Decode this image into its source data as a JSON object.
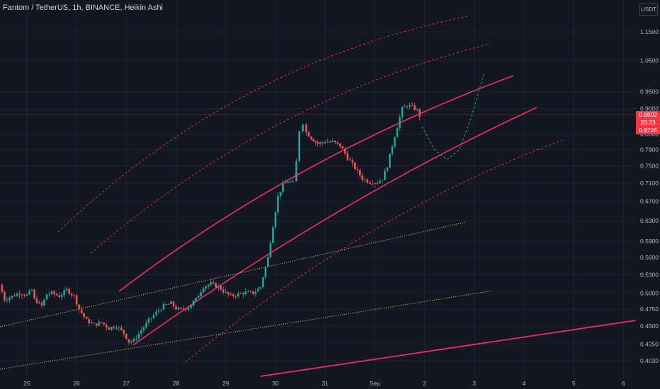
{
  "header": {
    "title": "Fantom / TetherUS, 1h, BINANCE, Heikin Ashi",
    "currency": "USDT"
  },
  "price_tag": {
    "last_price": "0.8802",
    "countdown": "20:23",
    "secondary_price": "0.8726",
    "color": "#f23645"
  },
  "colors": {
    "background": "#131722",
    "up": "#26a69a",
    "down": "#ef5350",
    "channel": "#f2286a",
    "dotted_lines": "#e3d06a",
    "projection": "#26a69a",
    "axis_text": "#b2b5be"
  },
  "chart_data": {
    "type": "candlestick",
    "style": "Heikin Ashi",
    "symbol": "Fantom / TetherUS",
    "exchange": "BINANCE",
    "interval": "1h",
    "x_tick_labels": [
      "25",
      "26",
      "27",
      "28",
      "29",
      "30",
      "31",
      "Sep",
      "2",
      "3",
      "4",
      "5",
      "6"
    ],
    "y_tick_labels": [
      "1.1500",
      "1.0500",
      "0.9500",
      "0.9000",
      "0.8300",
      "0.7900",
      "0.7500",
      "0.7100",
      "0.6700",
      "0.6300",
      "0.5900",
      "0.5600",
      "0.5300",
      "0.5000",
      "0.4750",
      "0.4500",
      "0.4250",
      "0.4030"
    ],
    "ylim": [
      0.39,
      1.22
    ],
    "scale": "log",
    "last_price": 0.8802,
    "close_series_day_offsets": [
      [
        -0.55,
        0.513
      ],
      [
        -0.45,
        0.49
      ],
      [
        -0.3,
        0.495
      ],
      [
        -0.15,
        0.5
      ],
      [
        0,
        0.497
      ],
      [
        0.1,
        0.505
      ],
      [
        0.15,
        0.49
      ],
      [
        0.3,
        0.48
      ],
      [
        0.4,
        0.498
      ],
      [
        0.5,
        0.5
      ],
      [
        0.65,
        0.495
      ],
      [
        0.8,
        0.505
      ],
      [
        0.95,
        0.495
      ],
      [
        1.05,
        0.475
      ],
      [
        1.2,
        0.458
      ],
      [
        1.35,
        0.452
      ],
      [
        1.5,
        0.455
      ],
      [
        1.65,
        0.447
      ],
      [
        1.8,
        0.45
      ],
      [
        1.95,
        0.44
      ],
      [
        2.05,
        0.428
      ],
      [
        2.15,
        0.43
      ],
      [
        2.3,
        0.444
      ],
      [
        2.45,
        0.458
      ],
      [
        2.6,
        0.47
      ],
      [
        2.75,
        0.48
      ],
      [
        2.9,
        0.484
      ],
      [
        3.0,
        0.476
      ],
      [
        3.1,
        0.474
      ],
      [
        3.25,
        0.478
      ],
      [
        3.4,
        0.49
      ],
      [
        3.55,
        0.51
      ],
      [
        3.7,
        0.515
      ],
      [
        3.85,
        0.51
      ],
      [
        4.0,
        0.5
      ],
      [
        4.1,
        0.495
      ],
      [
        4.25,
        0.498
      ],
      [
        4.4,
        0.501
      ],
      [
        4.55,
        0.5
      ],
      [
        4.7,
        0.51
      ],
      [
        4.85,
        0.56
      ],
      [
        4.95,
        0.62
      ],
      [
        5.05,
        0.68
      ],
      [
        5.15,
        0.705
      ],
      [
        5.25,
        0.715
      ],
      [
        5.35,
        0.71
      ],
      [
        5.42,
        0.76
      ],
      [
        5.48,
        0.84
      ],
      [
        5.55,
        0.86
      ],
      [
        5.62,
        0.835
      ],
      [
        5.72,
        0.82
      ],
      [
        5.85,
        0.805
      ],
      [
        6.0,
        0.81
      ],
      [
        6.15,
        0.81
      ],
      [
        6.3,
        0.8
      ],
      [
        6.45,
        0.77
      ],
      [
        6.6,
        0.745
      ],
      [
        6.75,
        0.72
      ],
      [
        6.9,
        0.712
      ],
      [
        7.05,
        0.712
      ],
      [
        7.15,
        0.72
      ],
      [
        7.25,
        0.75
      ],
      [
        7.35,
        0.8
      ],
      [
        7.45,
        0.85
      ],
      [
        7.55,
        0.9
      ],
      [
        7.65,
        0.91
      ],
      [
        7.75,
        0.905
      ],
      [
        7.85,
        0.895
      ],
      [
        7.9,
        0.88
      ]
    ],
    "projection_day_offsets": [
      [
        7.95,
        0.85
      ],
      [
        8.2,
        0.79
      ],
      [
        8.45,
        0.765
      ],
      [
        8.7,
        0.79
      ],
      [
        8.95,
        0.88
      ],
      [
        9.2,
        1.01
      ]
    ]
  }
}
